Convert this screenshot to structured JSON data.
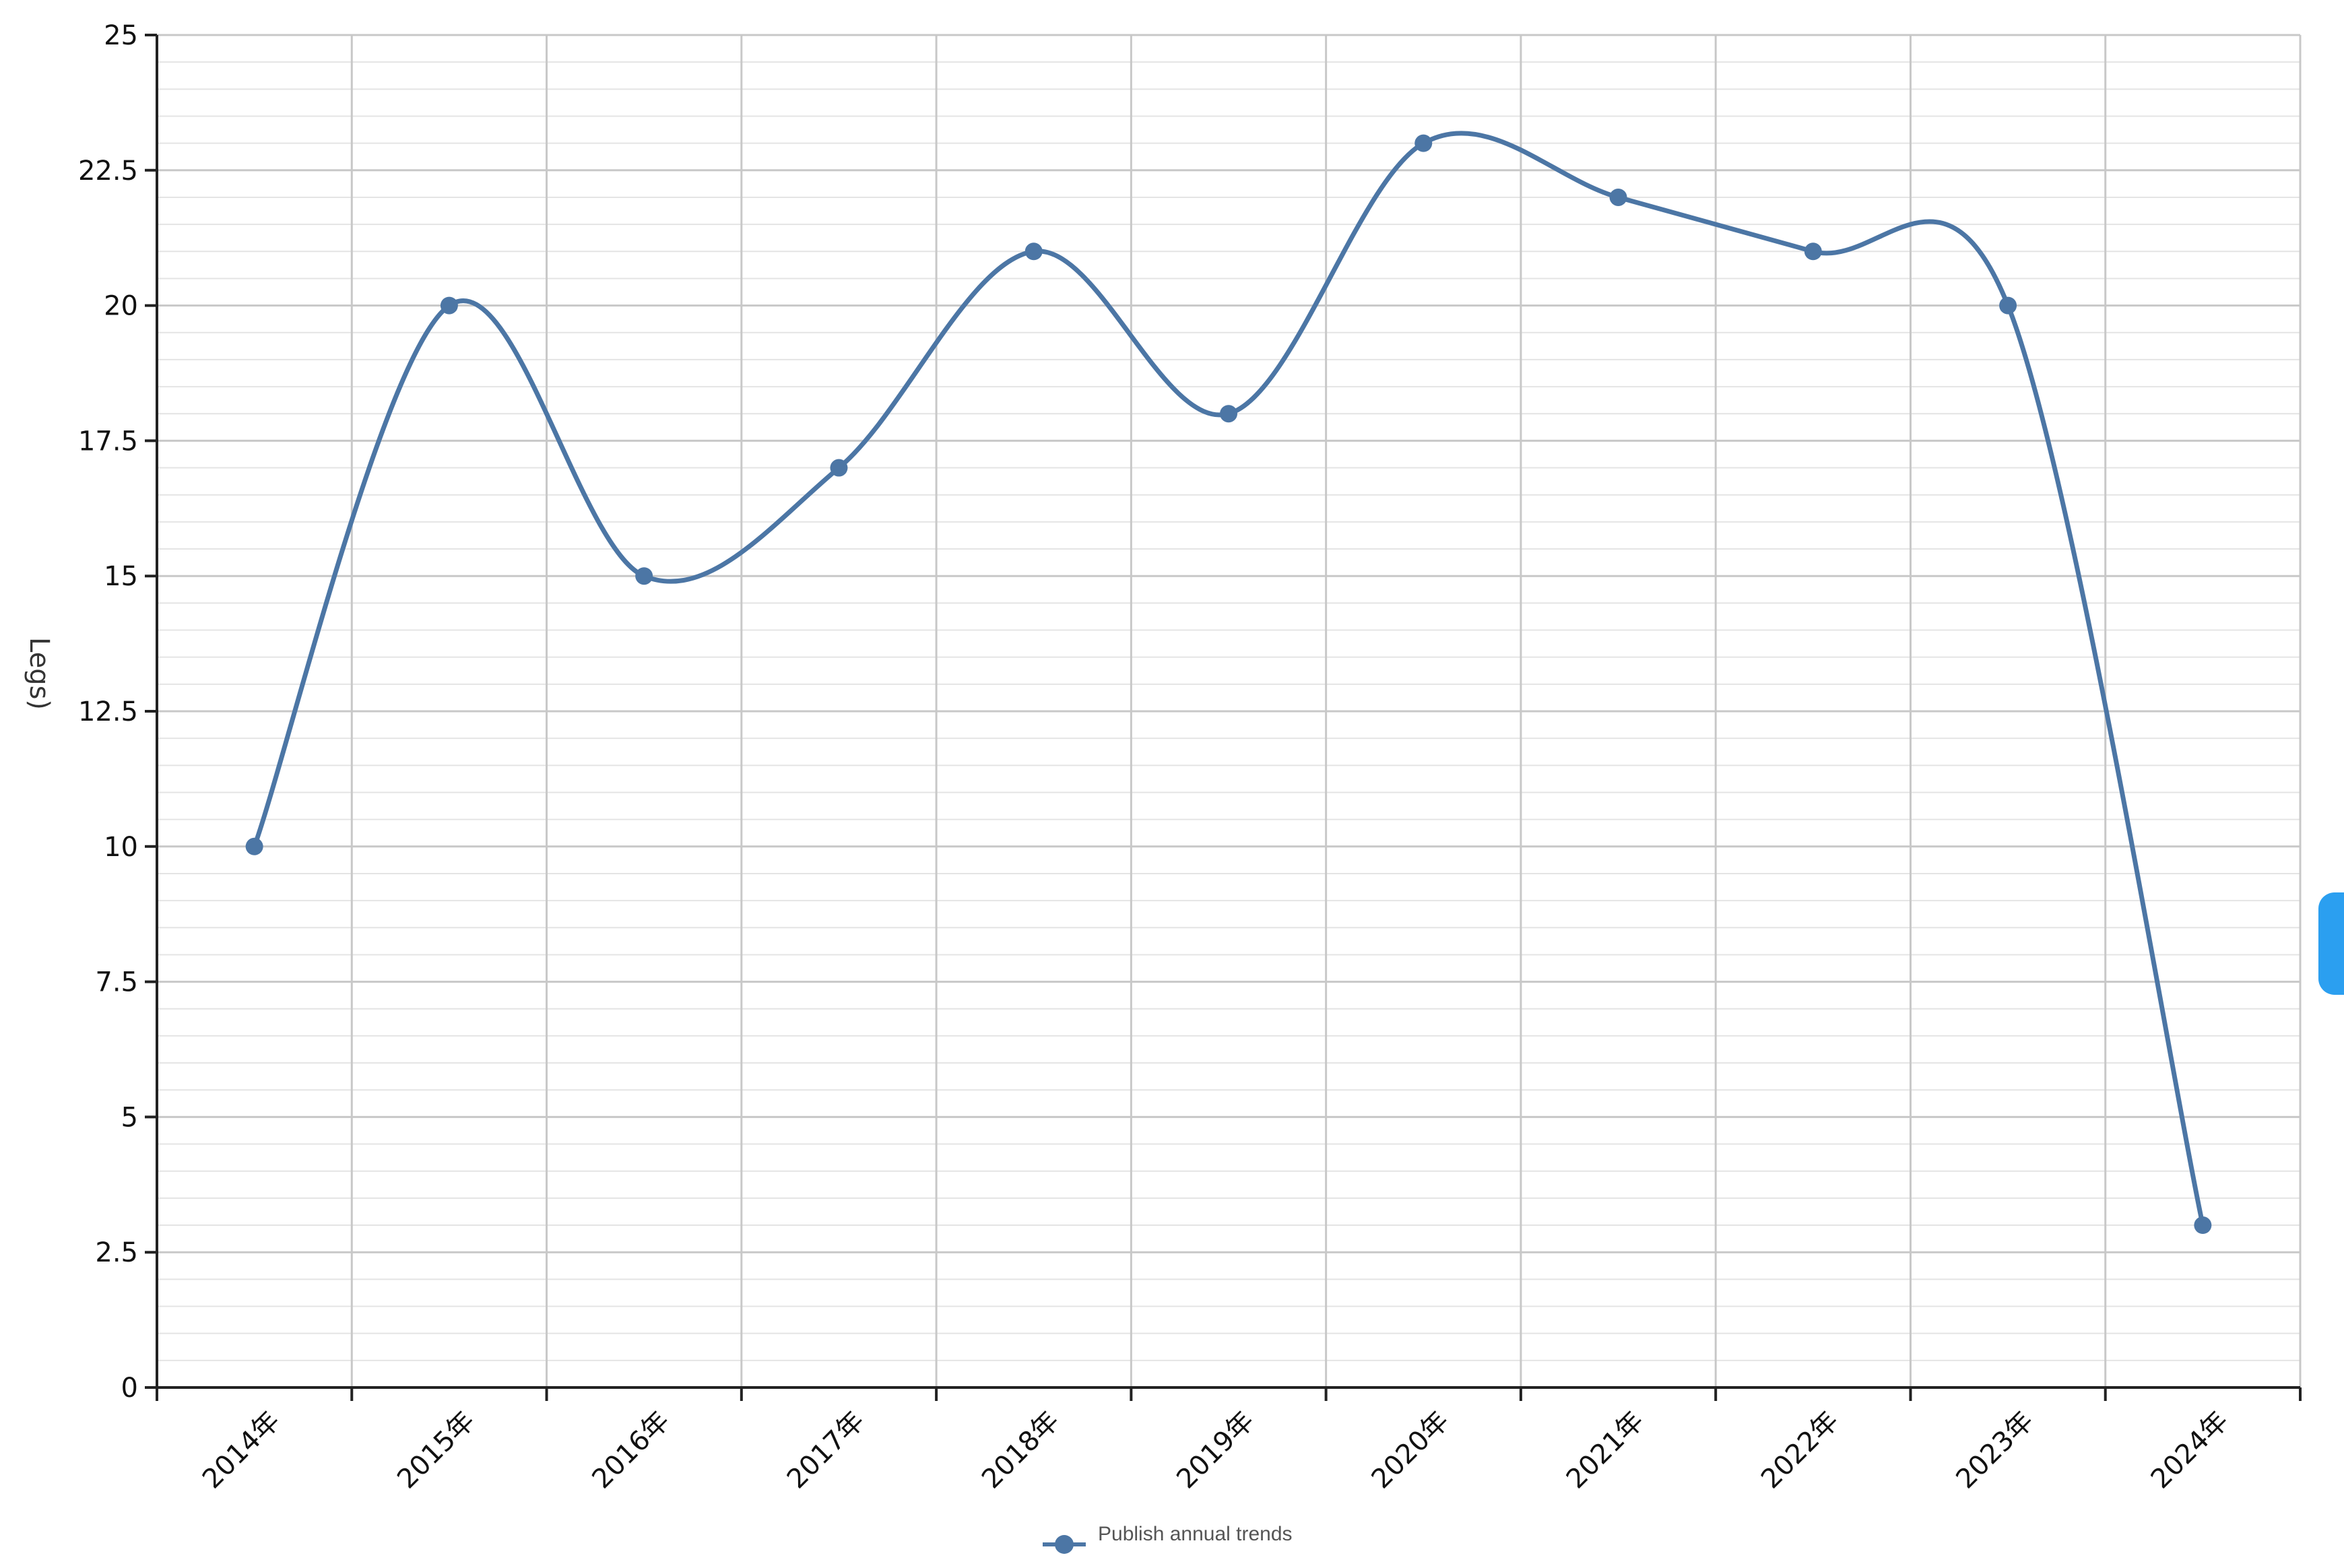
{
  "chart_data": {
    "type": "line",
    "smooth": true,
    "categories": [
      "2014年",
      "2015年",
      "2016年",
      "2017年",
      "2018年",
      "2019年",
      "2020年",
      "2021年",
      "2022年",
      "2023年",
      "2024年"
    ],
    "series": [
      {
        "name": "Publish annual trends",
        "values": [
          10,
          20,
          15,
          17,
          21,
          18,
          23,
          22,
          21,
          20,
          3
        ]
      }
    ],
    "ylabel": "Legs)",
    "ylim": [
      0,
      25
    ],
    "yticks": [
      "0",
      "2.5",
      "5",
      "7.5",
      "10",
      "12.5",
      "15",
      "17.5",
      "20",
      "22.5",
      "25"
    ],
    "ytick_values": [
      0,
      2.5,
      5,
      7.5,
      10,
      12.5,
      15,
      17.5,
      20,
      22.5,
      25
    ],
    "grid": true,
    "legend_position": "bottom-center",
    "colors": {
      "series": "#4c76a5",
      "grid_major": "#c8c8c8",
      "grid_minor": "#e4e4e4",
      "axis": "#222222"
    }
  }
}
